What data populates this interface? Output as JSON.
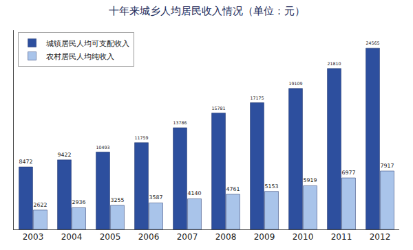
{
  "chart_data": {
    "type": "bar",
    "title": "十年来城乡人均居民收入情况（单位：元）",
    "categories": [
      "2003",
      "2004",
      "2005",
      "2006",
      "2007",
      "2008",
      "2009",
      "2010",
      "2011",
      "2012"
    ],
    "series": [
      {
        "name": "城镇居民人均可支配收入",
        "color": "#2d4f9e",
        "values": [
          8472,
          9422,
          10493,
          11759,
          13786,
          15781,
          17175,
          19109,
          21810,
          24565
        ]
      },
      {
        "name": "农村居民人均纯收入",
        "color": "#a9c4ea",
        "values": [
          2622,
          2936,
          3255,
          3587,
          4140,
          4761,
          5153,
          5919,
          6977,
          7917
        ]
      }
    ],
    "ylim": [
      0,
      27000
    ],
    "yticks": [],
    "tick_labels": "x",
    "grid": false,
    "legend": "top left",
    "data_labels": true
  }
}
